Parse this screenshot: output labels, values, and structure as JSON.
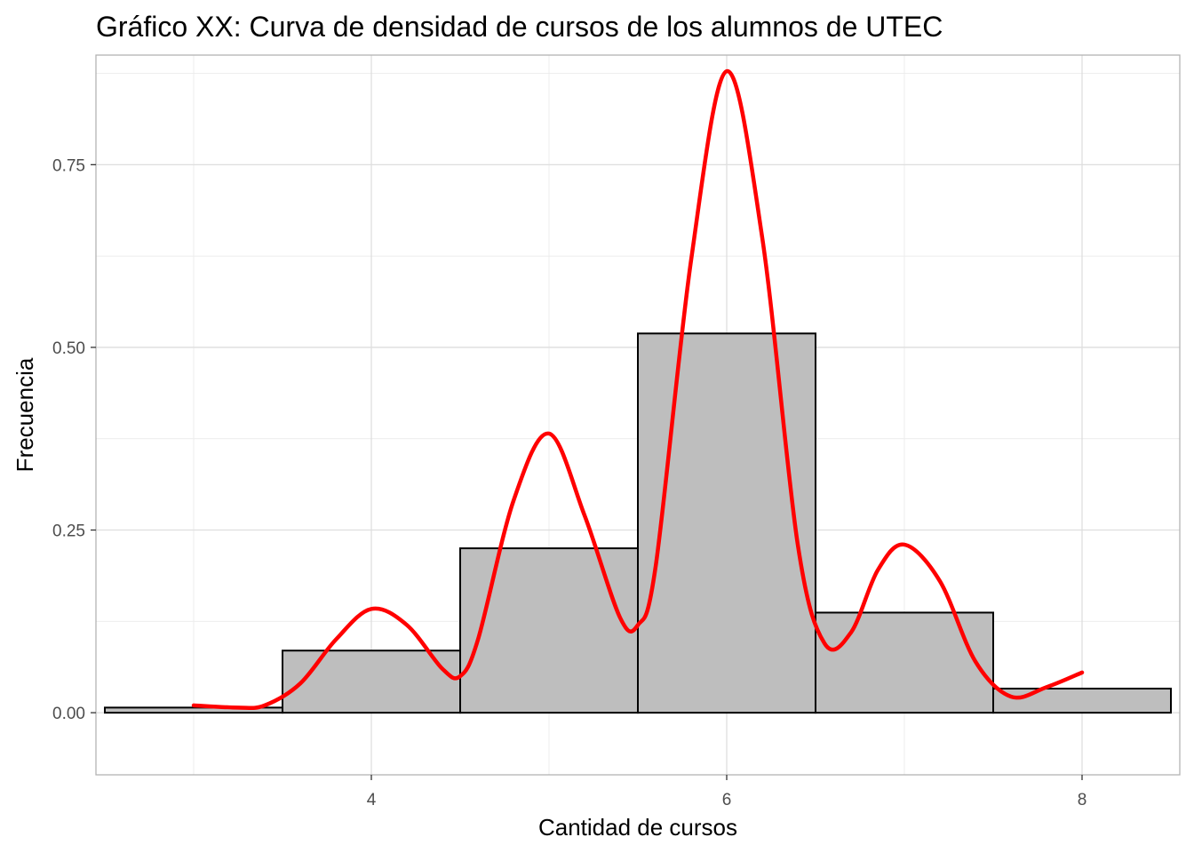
{
  "chart_data": {
    "type": "bar",
    "title": "Gráfico XX: Curva de densidad de cursos de los alumnos de UTEC",
    "xlabel": "Cantidad de cursos",
    "ylabel": "Frecuencia",
    "xlim": [
      2.45,
      8.55
    ],
    "ylim": [
      -0.085,
      0.9
    ],
    "grid": true,
    "x_ticks": [
      4,
      6,
      8
    ],
    "y_ticks": [
      0.0,
      0.25,
      0.5,
      0.75
    ],
    "x_tick_labels": [
      "4",
      "6",
      "8"
    ],
    "y_tick_labels": [
      "0.00",
      "0.25",
      "0.50",
      "0.75"
    ],
    "histogram": {
      "bin_centers": [
        3,
        4,
        5,
        6,
        7,
        8
      ],
      "bin_width": 1,
      "values": [
        0.007,
        0.085,
        0.225,
        0.519,
        0.137,
        0.033
      ]
    },
    "density_curve": {
      "color": "#ff0000",
      "x": [
        3.0,
        3.25,
        3.4,
        3.6,
        3.8,
        4.0,
        4.2,
        4.4,
        4.5,
        4.6,
        4.8,
        5.0,
        5.2,
        5.4,
        5.5,
        5.6,
        5.8,
        6.0,
        6.2,
        6.4,
        6.55,
        6.7,
        6.85,
        7.0,
        7.2,
        7.4,
        7.6,
        7.8,
        8.0
      ],
      "y": [
        0.01,
        0.007,
        0.01,
        0.04,
        0.1,
        0.142,
        0.12,
        0.06,
        0.05,
        0.1,
        0.29,
        0.382,
        0.27,
        0.13,
        0.12,
        0.2,
        0.62,
        0.878,
        0.65,
        0.23,
        0.095,
        0.11,
        0.195,
        0.23,
        0.18,
        0.07,
        0.022,
        0.035,
        0.055
      ]
    },
    "colors": {
      "bar_fill": "#bebebe",
      "bar_outline": "#000000",
      "curve": "#ff0000"
    }
  }
}
